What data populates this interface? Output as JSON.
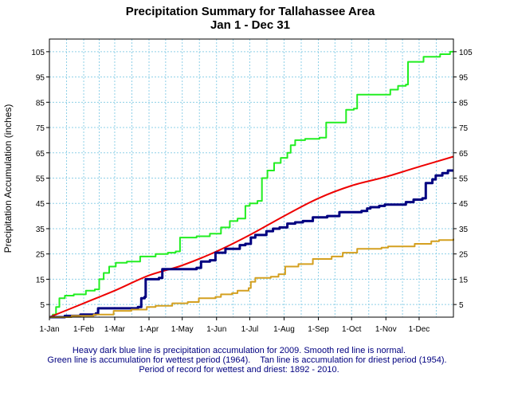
{
  "chart_data": {
    "type": "line",
    "title": "Precipitation Summary for Tallahassee Area",
    "subtitle": "Jan 1 - Dec 31",
    "ylabel": "Precipitation Accumulation (inches)",
    "xlabel": "",
    "x_tick_labels": [
      "1-Jan",
      "1-Feb",
      "1-Mar",
      "1-Apr",
      "1-May",
      "1-Jun",
      "1-Jul",
      "1-Aug",
      "1-Sep",
      "1-Oct",
      "1-Nov",
      "1-Dec"
    ],
    "x_tick_days": [
      0,
      31,
      59,
      90,
      120,
      151,
      181,
      212,
      243,
      273,
      304,
      334
    ],
    "xlim": [
      0,
      365
    ],
    "ylim": [
      0,
      110
    ],
    "y_ticks": [
      5,
      15,
      25,
      35,
      45,
      55,
      65,
      75,
      85,
      95,
      105
    ],
    "grid": true,
    "series": [
      {
        "key": "wettest",
        "color": "#22ee22",
        "width": 2,
        "step": true,
        "points": [
          [
            0,
            0
          ],
          [
            3,
            1
          ],
          [
            6,
            4
          ],
          [
            9,
            7.5
          ],
          [
            14,
            8.5
          ],
          [
            22,
            9
          ],
          [
            33,
            10.5
          ],
          [
            41,
            11
          ],
          [
            45,
            15
          ],
          [
            49,
            17.5
          ],
          [
            54,
            20
          ],
          [
            60,
            21.5
          ],
          [
            70,
            22
          ],
          [
            82,
            24
          ],
          [
            96,
            25
          ],
          [
            107,
            25.5
          ],
          [
            114,
            26
          ],
          [
            118,
            31.5
          ],
          [
            133,
            32
          ],
          [
            145,
            33
          ],
          [
            155,
            35.5
          ],
          [
            163,
            38
          ],
          [
            170,
            39
          ],
          [
            177,
            44
          ],
          [
            181,
            45
          ],
          [
            188,
            46
          ],
          [
            192,
            55
          ],
          [
            197,
            58
          ],
          [
            203,
            61
          ],
          [
            209,
            63
          ],
          [
            215,
            65
          ],
          [
            218,
            68
          ],
          [
            222,
            70
          ],
          [
            231,
            70.5
          ],
          [
            244,
            71
          ],
          [
            250,
            77
          ],
          [
            262,
            77
          ],
          [
            268,
            82
          ],
          [
            275,
            82.5
          ],
          [
            278,
            88
          ],
          [
            290,
            88
          ],
          [
            306,
            88
          ],
          [
            308,
            90
          ],
          [
            315,
            91.5
          ],
          [
            322,
            92
          ],
          [
            324,
            101
          ],
          [
            338,
            103
          ],
          [
            353,
            104
          ],
          [
            362,
            105
          ],
          [
            365,
            105
          ]
        ]
      },
      {
        "key": "normal",
        "color": "#ee0000",
        "width": 2,
        "step": false,
        "points": [
          [
            0,
            0
          ],
          [
            31,
            5.5
          ],
          [
            59,
            10.5
          ],
          [
            90,
            16.5
          ],
          [
            120,
            20.5
          ],
          [
            151,
            26
          ],
          [
            181,
            32.5
          ],
          [
            212,
            40
          ],
          [
            243,
            47
          ],
          [
            273,
            52
          ],
          [
            304,
            55.5
          ],
          [
            334,
            59.5
          ],
          [
            365,
            63.5
          ]
        ]
      },
      {
        "key": "y2009",
        "color": "#000080",
        "width": 3,
        "step": true,
        "points": [
          [
            0,
            0
          ],
          [
            14,
            0.5
          ],
          [
            28,
            1
          ],
          [
            42,
            1.5
          ],
          [
            44,
            3.5
          ],
          [
            70,
            3.5
          ],
          [
            80,
            4
          ],
          [
            83,
            7.5
          ],
          [
            86,
            8
          ],
          [
            87,
            15
          ],
          [
            99,
            15.5
          ],
          [
            102,
            19
          ],
          [
            133,
            19.5
          ],
          [
            137,
            22
          ],
          [
            145,
            22.5
          ],
          [
            150,
            25.5
          ],
          [
            159,
            27
          ],
          [
            172,
            28.5
          ],
          [
            177,
            29
          ],
          [
            182,
            31.5
          ],
          [
            186,
            32.5
          ],
          [
            196,
            34
          ],
          [
            202,
            35
          ],
          [
            208,
            35.5
          ],
          [
            215,
            37
          ],
          [
            222,
            37.5
          ],
          [
            229,
            38
          ],
          [
            238,
            39.5
          ],
          [
            251,
            40
          ],
          [
            262,
            41.5
          ],
          [
            282,
            42
          ],
          [
            287,
            43
          ],
          [
            290,
            43.5
          ],
          [
            298,
            44
          ],
          [
            303,
            44.5
          ],
          [
            322,
            45.5
          ],
          [
            329,
            46.5
          ],
          [
            337,
            47
          ],
          [
            340,
            53
          ],
          [
            346,
            54.5
          ],
          [
            349,
            56
          ],
          [
            355,
            57
          ],
          [
            360,
            58
          ],
          [
            365,
            58
          ]
        ]
      },
      {
        "key": "driest",
        "color": "#d4a020",
        "width": 2,
        "step": true,
        "points": [
          [
            0,
            0
          ],
          [
            20,
            0.5
          ],
          [
            40,
            1
          ],
          [
            58,
            2.5
          ],
          [
            74,
            3
          ],
          [
            88,
            4
          ],
          [
            96,
            4.5
          ],
          [
            111,
            5.5
          ],
          [
            125,
            6
          ],
          [
            135,
            7.5
          ],
          [
            150,
            8
          ],
          [
            155,
            9
          ],
          [
            165,
            9.5
          ],
          [
            170,
            10.5
          ],
          [
            180,
            11.5
          ],
          [
            182,
            14
          ],
          [
            186,
            15.5
          ],
          [
            200,
            16
          ],
          [
            207,
            17
          ],
          [
            213,
            20
          ],
          [
            225,
            21
          ],
          [
            238,
            23
          ],
          [
            255,
            24
          ],
          [
            265,
            25.5
          ],
          [
            278,
            27
          ],
          [
            300,
            27.5
          ],
          [
            306,
            28
          ],
          [
            330,
            29
          ],
          [
            345,
            30
          ],
          [
            352,
            30.5
          ],
          [
            365,
            31
          ]
        ]
      }
    ],
    "legend": [
      "Heavy dark blue line is precipitation accumulation for 2009. Smooth red line is normal.",
      "Green line is accumulation for wettest period (1964).    Tan line is accumulation for driest period (1954).",
      "Period of record for wettest and driest: 1892 - 2010."
    ]
  }
}
